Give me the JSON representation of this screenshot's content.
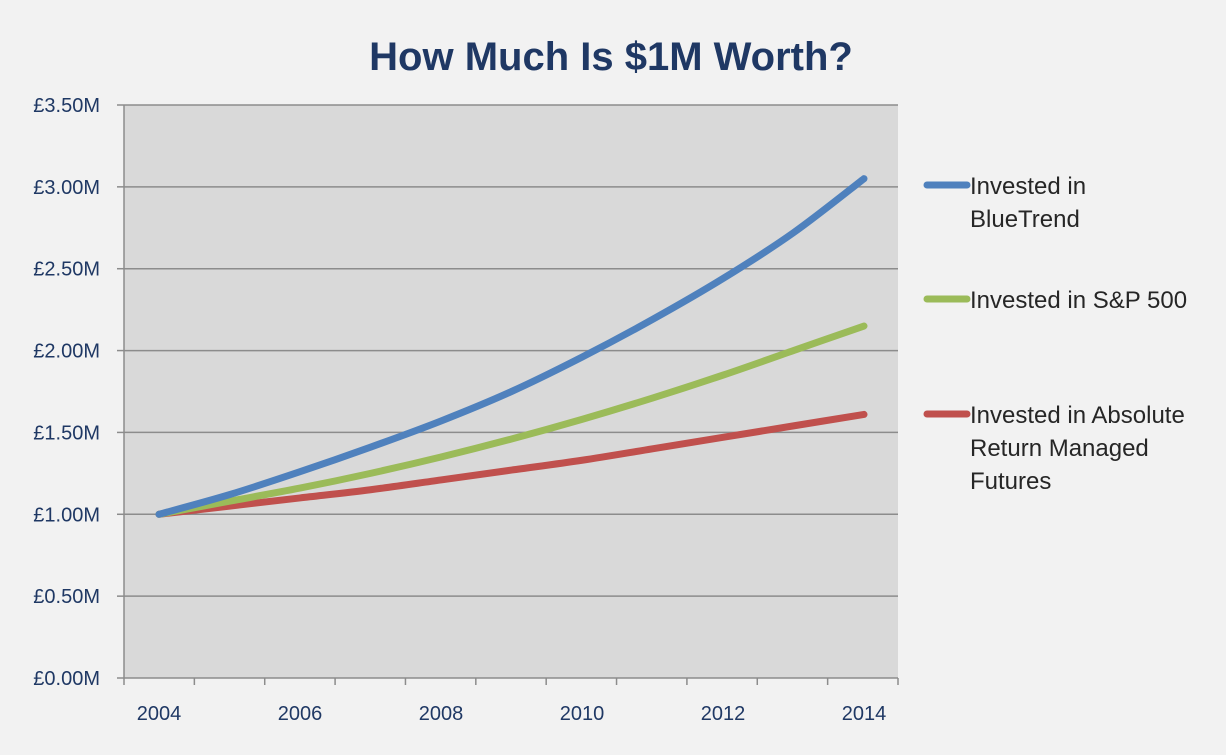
{
  "chart_data": {
    "type": "line",
    "title": "How Much Is $1M Worth?",
    "xlabel": "",
    "ylabel": "",
    "x": [
      2004,
      2005,
      2006,
      2007,
      2008,
      2009,
      2010,
      2011,
      2012,
      2013,
      2014
    ],
    "x_tick_labels": [
      "2004",
      "2006",
      "2008",
      "2010",
      "2012",
      "2014"
    ],
    "y_tick_labels": [
      "£0.00M",
      "£0.50M",
      "£1.00M",
      "£1.50M",
      "£2.00M",
      "£2.50M",
      "£3.00M",
      "£3.50M"
    ],
    "ylim": [
      0,
      3.5
    ],
    "grid": true,
    "legend_position": "right",
    "series": [
      {
        "name": "Invested in BlueTrend",
        "legend_lines": [
          "Invested in",
          "BlueTrend"
        ],
        "color": "#4f81bd",
        "values": [
          1.0,
          1.12,
          1.26,
          1.41,
          1.57,
          1.75,
          1.96,
          2.19,
          2.44,
          2.72,
          3.05
        ]
      },
      {
        "name": "Invested in S&P 500",
        "legend_lines": [
          "Invested in S&P 500"
        ],
        "color": "#9bbb59",
        "values": [
          1.0,
          1.08,
          1.16,
          1.25,
          1.35,
          1.46,
          1.58,
          1.71,
          1.85,
          2.0,
          2.15
        ]
      },
      {
        "name": "Invested in Absolute Return Managed Futures",
        "legend_lines": [
          "Invested in Absolute",
          "Return Managed",
          "Futures"
        ],
        "color": "#c0504d",
        "values": [
          1.0,
          1.05,
          1.1,
          1.15,
          1.21,
          1.27,
          1.33,
          1.4,
          1.47,
          1.54,
          1.61
        ]
      }
    ],
    "colors": {
      "title": "#1f3864",
      "axis_text": "#1f3864",
      "plot_background": "#d9d9d9",
      "gridline": "#8c8c8c",
      "page_background": "#f2f2f2"
    }
  }
}
